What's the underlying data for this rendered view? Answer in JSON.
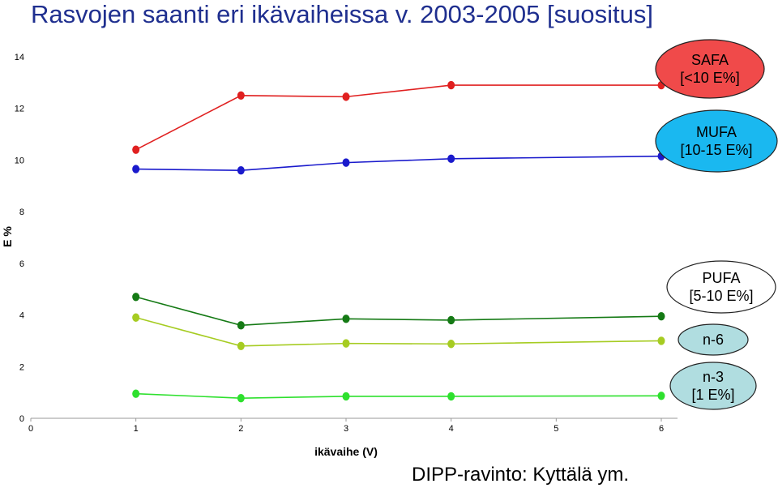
{
  "title": "Rasvojen saanti eri ikävaiheissa v. 2003-2005 [suositus]",
  "source": "DIPP-ravinto: Kyttälä ym.",
  "chart_data": {
    "type": "line",
    "xlabel": "ikävaihe (V)",
    "ylabel": "E %",
    "xlim": [
      0,
      6
    ],
    "ylim": [
      0,
      14
    ],
    "x_ticks": [
      0,
      1,
      2,
      3,
      4,
      5,
      6
    ],
    "y_ticks": [
      0,
      2,
      4,
      6,
      8,
      10,
      12,
      14
    ],
    "grid": false,
    "series": [
      {
        "name": "SAFA",
        "color": "#e02020",
        "x": [
          1,
          2,
          3,
          4,
          6
        ],
        "values": [
          10.4,
          12.5,
          12.45,
          12.9,
          12.9
        ]
      },
      {
        "name": "MUFA",
        "color": "#1a1acc",
        "x": [
          1,
          2,
          3,
          4,
          6
        ],
        "values": [
          9.65,
          9.6,
          9.9,
          10.05,
          10.15
        ]
      },
      {
        "name": "PUFA",
        "color": "#157a15",
        "x": [
          1,
          2,
          3,
          4,
          6
        ],
        "values": [
          4.7,
          3.6,
          3.85,
          3.8,
          3.95
        ]
      },
      {
        "name": "n-6",
        "color": "#a6cc22",
        "x": [
          1,
          2,
          3,
          4,
          6
        ],
        "values": [
          3.9,
          2.8,
          2.9,
          2.88,
          3.0
        ]
      },
      {
        "name": "n-3",
        "color": "#2ee02e",
        "x": [
          1,
          2,
          3,
          4,
          6
        ],
        "values": [
          0.95,
          0.78,
          0.85,
          0.85,
          0.87
        ]
      }
    ]
  },
  "callouts": [
    {
      "lines": [
        "SAFA",
        "[<10 E%]"
      ],
      "fill": "#f04a4a"
    },
    {
      "lines": [
        "MUFA",
        "[10-15 E%]"
      ],
      "fill": "#1ab8f0"
    },
    {
      "lines": [
        "PUFA",
        "[5-10 E%]"
      ],
      "fill": "#ffffff"
    },
    {
      "lines": [
        "n-6"
      ],
      "fill": "#b0dde0"
    },
    {
      "lines": [
        "n-3",
        "[1 E%]"
      ],
      "fill": "#b0dde0"
    }
  ]
}
